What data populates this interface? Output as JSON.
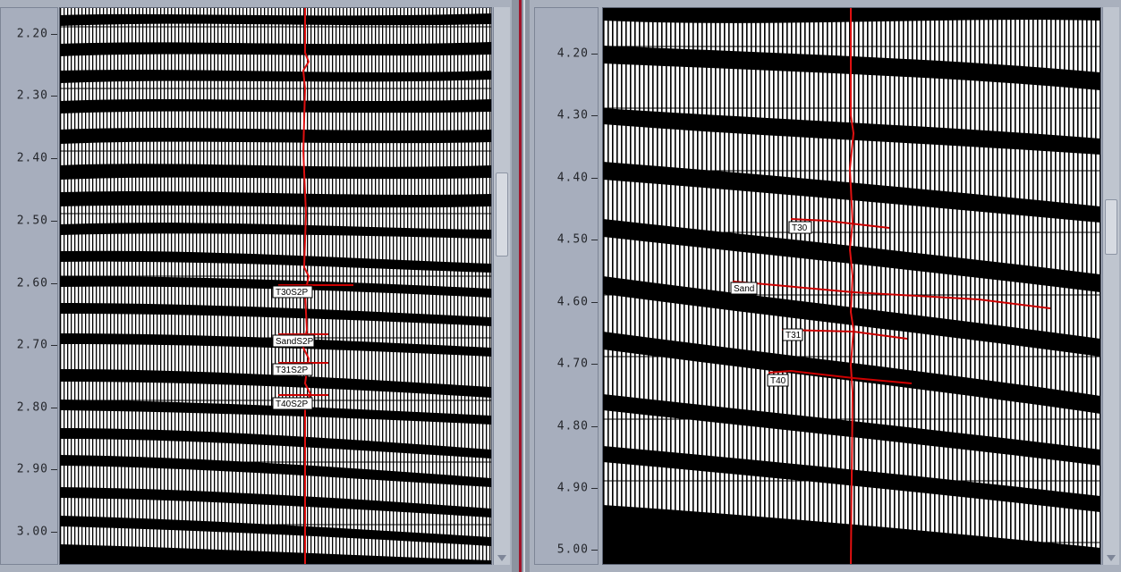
{
  "left_view": {
    "time_ticks": [
      "2.20",
      "2.30",
      "2.40",
      "2.50",
      "2.60",
      "2.70",
      "2.80",
      "2.90",
      "3.00"
    ],
    "horizon_labels": [
      "T30S2P",
      "SandS2P",
      "T31S2P",
      "T40S2P"
    ]
  },
  "right_view": {
    "time_ticks": [
      "4.20",
      "4.30",
      "4.40",
      "4.50",
      "4.60",
      "4.70",
      "4.80",
      "4.90",
      "5.00"
    ],
    "horizon_labels": [
      "T30",
      "Sand",
      "T31",
      "T40"
    ]
  },
  "colors": {
    "well_track": "#e01010",
    "horizon_pick": "#cc0000",
    "seismic_fill": "#000000",
    "background": "#ffffff",
    "ui_gray": "#a9b0bd"
  }
}
